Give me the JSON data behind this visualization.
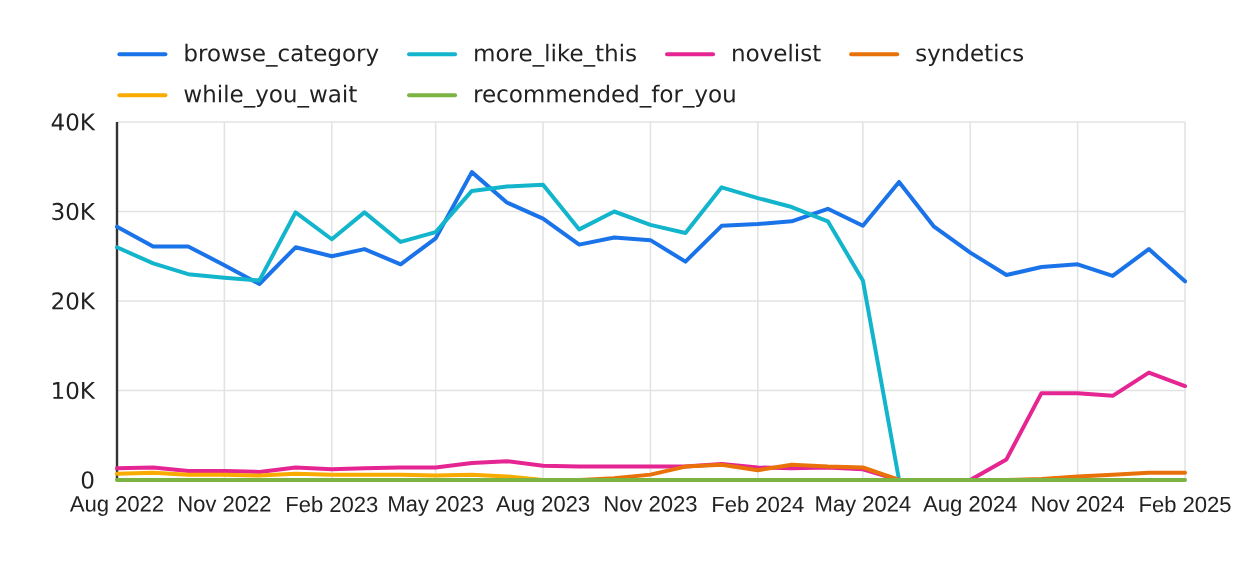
{
  "chart_data": {
    "type": "line",
    "x": [
      "2022-08",
      "2022-09",
      "2022-10",
      "2022-11",
      "2022-12",
      "2023-01",
      "2023-02",
      "2023-03",
      "2023-04",
      "2023-05",
      "2023-06",
      "2023-07",
      "2023-08",
      "2023-09",
      "2023-10",
      "2023-11",
      "2023-12",
      "2024-01",
      "2024-02",
      "2024-03",
      "2024-04",
      "2024-05",
      "2024-06",
      "2024-07",
      "2024-08",
      "2024-09",
      "2024-10",
      "2024-11",
      "2024-12",
      "2025-01",
      "2025-02"
    ],
    "series": [
      {
        "name": "browse_category",
        "color": "#1a73e8",
        "values": [
          28300,
          26100,
          26100,
          24000,
          21900,
          26000,
          25000,
          25800,
          24100,
          27000,
          34400,
          31000,
          29200,
          26300,
          27100,
          26800,
          24400,
          28400,
          28600,
          28900,
          30300,
          28400,
          33300,
          28300,
          25400,
          22900,
          23800,
          24100,
          22800,
          25800,
          22200
        ]
      },
      {
        "name": "more_like_this",
        "color": "#12b5cb",
        "values": [
          26000,
          24200,
          23000,
          22600,
          22300,
          29900,
          26900,
          29900,
          26600,
          27700,
          32300,
          32800,
          33000,
          28000,
          30000,
          28500,
          27600,
          32700,
          31500,
          30500,
          28900,
          22300,
          0,
          null,
          null,
          null,
          null,
          null,
          null,
          null,
          null
        ]
      },
      {
        "name": "novelist",
        "color": "#e52592",
        "values": [
          1300,
          1400,
          1000,
          1000,
          900,
          1400,
          1200,
          1300,
          1400,
          1400,
          1900,
          2100,
          1600,
          1500,
          1500,
          1500,
          1500,
          1800,
          1400,
          1300,
          1400,
          1200,
          0,
          null,
          0,
          2300,
          9700,
          9700,
          9400,
          12000,
          10500
        ]
      },
      {
        "name": "syndetics",
        "color": "#e8710a",
        "values": [
          null,
          null,
          null,
          null,
          null,
          null,
          null,
          null,
          null,
          null,
          null,
          null,
          null,
          0,
          200,
          600,
          1500,
          1700,
          1100,
          1700,
          1500,
          1400,
          0,
          null,
          null,
          0,
          100,
          400,
          600,
          800,
          800
        ]
      },
      {
        "name": "while_you_wait",
        "color": "#f9ab00",
        "values": [
          700,
          800,
          600,
          600,
          500,
          700,
          600,
          600,
          600,
          500,
          600,
          400,
          0,
          null,
          null,
          null,
          null,
          null,
          null,
          null,
          null,
          null,
          null,
          null,
          null,
          null,
          null,
          null,
          null,
          null,
          null
        ]
      },
      {
        "name": "recommended_for_you",
        "color": "#7cb342",
        "values": [
          0,
          0,
          0,
          0,
          0,
          0,
          0,
          0,
          0,
          0,
          0,
          0,
          0,
          0,
          0,
          0,
          0,
          0,
          0,
          0,
          0,
          0,
          0,
          0,
          0,
          0,
          0,
          0,
          0,
          0,
          0
        ]
      }
    ],
    "xlim": [
      "2022-08",
      "2025-02"
    ],
    "xticks": [
      {
        "value": "2022-08",
        "label": "Aug 2022"
      },
      {
        "value": "2022-11",
        "label": "Nov 2022"
      },
      {
        "value": "2023-02",
        "label": "Feb 2023"
      },
      {
        "value": "2023-05",
        "label": "May 2023"
      },
      {
        "value": "2023-08",
        "label": "Aug 2023"
      },
      {
        "value": "2023-11",
        "label": "Nov 2023"
      },
      {
        "value": "2024-02",
        "label": "Feb 2024"
      },
      {
        "value": "2024-05",
        "label": "May 2024"
      },
      {
        "value": "2024-08",
        "label": "Aug 2024"
      },
      {
        "value": "2024-11",
        "label": "Nov 2024"
      },
      {
        "value": "2025-02",
        "label": "Feb 2025"
      }
    ],
    "ylim": [
      0,
      40000
    ],
    "yticks": [
      0,
      {
        "value": 10000,
        "label": "10K"
      },
      {
        "value": 20000,
        "label": "20K"
      },
      {
        "value": 30000,
        "label": "30K"
      },
      {
        "value": 40000,
        "label": "40K"
      }
    ],
    "grid": true,
    "legend": "top left"
  }
}
